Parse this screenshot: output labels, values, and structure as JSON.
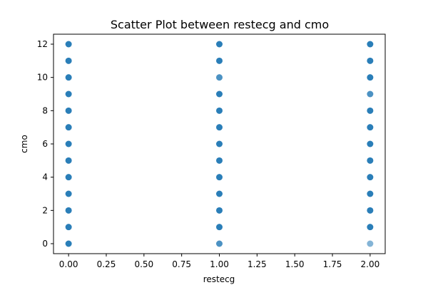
{
  "chart_data": {
    "type": "scatter",
    "title": "Scatter Plot between restecg and cmo",
    "xlabel": "restecg",
    "ylabel": "cmo",
    "xlim": [
      -0.1,
      2.1
    ],
    "ylim": [
      -0.6,
      12.6
    ],
    "xticks": [
      0.0,
      0.25,
      0.5,
      0.75,
      1.0,
      1.25,
      1.5,
      1.75,
      2.0
    ],
    "xtick_labels": [
      "0.00",
      "0.25",
      "0.50",
      "0.75",
      "1.00",
      "1.25",
      "1.50",
      "1.75",
      "2.00"
    ],
    "yticks": [
      0,
      2,
      4,
      6,
      8,
      10,
      12
    ],
    "ytick_labels": [
      "0",
      "2",
      "4",
      "6",
      "8",
      "10",
      "12"
    ],
    "grid": false,
    "marker_color": "#1f77b4",
    "points": [
      {
        "x": 0,
        "y": 0,
        "dense": true
      },
      {
        "x": 0,
        "y": 1,
        "dense": true
      },
      {
        "x": 0,
        "y": 2,
        "dense": true
      },
      {
        "x": 0,
        "y": 3,
        "dense": true
      },
      {
        "x": 0,
        "y": 4,
        "dense": true
      },
      {
        "x": 0,
        "y": 5,
        "dense": true
      },
      {
        "x": 0,
        "y": 6,
        "dense": true
      },
      {
        "x": 0,
        "y": 7,
        "dense": true
      },
      {
        "x": 0,
        "y": 8,
        "dense": true
      },
      {
        "x": 0,
        "y": 9,
        "dense": true
      },
      {
        "x": 0,
        "y": 10,
        "dense": true
      },
      {
        "x": 0,
        "y": 11,
        "dense": true
      },
      {
        "x": 0,
        "y": 12,
        "dense": true
      },
      {
        "x": 1,
        "y": 0,
        "dense": false
      },
      {
        "x": 1,
        "y": 1,
        "dense": true
      },
      {
        "x": 1,
        "y": 2,
        "dense": true
      },
      {
        "x": 1,
        "y": 3,
        "dense": true
      },
      {
        "x": 1,
        "y": 4,
        "dense": true
      },
      {
        "x": 1,
        "y": 5,
        "dense": true
      },
      {
        "x": 1,
        "y": 6,
        "dense": true
      },
      {
        "x": 1,
        "y": 7,
        "dense": true
      },
      {
        "x": 1,
        "y": 8,
        "dense": true
      },
      {
        "x": 1,
        "y": 9,
        "dense": true
      },
      {
        "x": 1,
        "y": 10,
        "dense": false
      },
      {
        "x": 1,
        "y": 11,
        "dense": true
      },
      {
        "x": 1,
        "y": 12,
        "dense": true
      },
      {
        "x": 2,
        "y": 0,
        "dense": false,
        "faint": true
      },
      {
        "x": 2,
        "y": 1,
        "dense": true
      },
      {
        "x": 2,
        "y": 2,
        "dense": true
      },
      {
        "x": 2,
        "y": 3,
        "dense": true
      },
      {
        "x": 2,
        "y": 4,
        "dense": true
      },
      {
        "x": 2,
        "y": 5,
        "dense": true
      },
      {
        "x": 2,
        "y": 6,
        "dense": true
      },
      {
        "x": 2,
        "y": 7,
        "dense": true
      },
      {
        "x": 2,
        "y": 8,
        "dense": true
      },
      {
        "x": 2,
        "y": 9,
        "dense": false
      },
      {
        "x": 2,
        "y": 10,
        "dense": true
      },
      {
        "x": 2,
        "y": 11,
        "dense": true
      },
      {
        "x": 2,
        "y": 12,
        "dense": true
      }
    ]
  }
}
